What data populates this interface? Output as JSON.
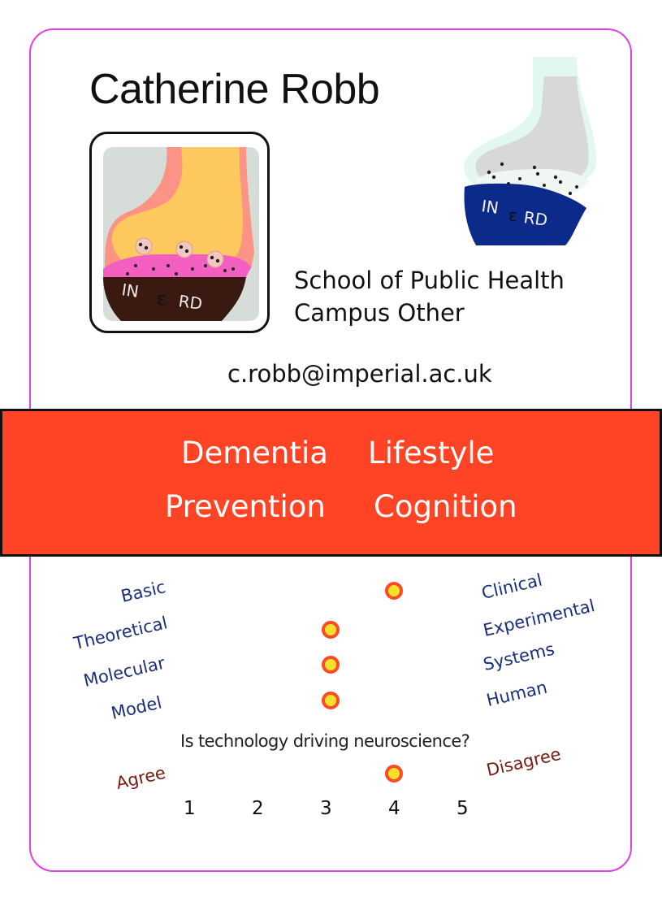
{
  "card": {
    "name": "Catherine Robb",
    "department": "School of Public Health",
    "campus": "Campus Other",
    "email": "c.robb@imperial.ac.uk"
  },
  "logo": {
    "text_main": "IN",
    "text_epsilon": "ε",
    "text_end": "RD"
  },
  "keywords": [
    "Dementia",
    "Lifestyle",
    "Prevention",
    "Cognition"
  ],
  "scales": [
    {
      "left": "Basic",
      "right": "Clinical",
      "value": 4
    },
    {
      "left": "Theoretical",
      "right": "Experimental",
      "value": 3
    },
    {
      "left": "Molecular",
      "right": "Systems",
      "value": 3
    },
    {
      "left": "Model",
      "right": "Human",
      "value": 3
    }
  ],
  "question": {
    "text": "Is technology driving neuroscience?",
    "left": "Agree",
    "right": "Disagree",
    "value": 4,
    "numbers": [
      "1",
      "2",
      "3",
      "4",
      "5"
    ]
  },
  "colors": {
    "banner": "#ff4426",
    "border": "#e040e0",
    "scale_text": "#1a2f7a",
    "agree_text": "#7a1b10",
    "dot_fill": "#f2e22b",
    "dot_ring": "#ff4a26"
  }
}
